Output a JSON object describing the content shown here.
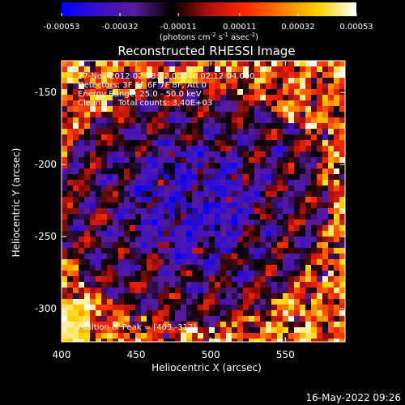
{
  "chart_data": {
    "type": "heatmap",
    "title": "Reconstructed RHESSI Image",
    "xlabel": "Heliocentric X (arcsec)",
    "ylabel": "Heliocentric Y (arcsec)",
    "xlim": [
      400,
      590
    ],
    "ylim": [
      -323,
      -128
    ],
    "x_ticks": [
      "400",
      "450",
      "500",
      "550"
    ],
    "x_tick_values": [
      400,
      450,
      500,
      550
    ],
    "y_ticks": [
      "-150",
      "-200",
      "-250",
      "-300"
    ],
    "y_tick_values": [
      -150,
      -200,
      -250,
      -300
    ],
    "colorbar": {
      "range": [
        -0.00053,
        0.00053
      ],
      "ticks": [
        "-0.00053",
        "-0.00032",
        "-0.00011",
        "0.00011",
        "0.00032",
        "0.00053"
      ],
      "tick_values": [
        -0.00053,
        -0.00032,
        -0.00011,
        0.00011,
        0.00032,
        0.00053
      ],
      "units_base": "(photons cm",
      "units_exp1": "-2",
      "units_mid1": " s",
      "units_exp2": "-1",
      "units_mid2": " asec",
      "units_exp3": "-2",
      "units_end": ")",
      "colormap": [
        "#0000ff",
        "#3a10c8",
        "#5a1a9a",
        "#000000",
        "#b01010",
        "#ff2a00",
        "#ff8000",
        "#ffd400",
        "#ffffff"
      ]
    },
    "annotations": {
      "time": "27-Nov-2012 02:08:52.000 to 02:12:04.000",
      "detectors": "Detectors: 3F 5F 6F 7F 8F, Att 0",
      "energy": "Energy Range: 25.0 - 50.0 keV",
      "clean": "Clean",
      "counts": "Total counts: 3.40E+03",
      "peak": "Position of Peak = [403,-317]"
    },
    "peak": [
      403,
      -317
    ],
    "grid": false
  },
  "footer": {
    "date": "16-May-2022 09:26"
  }
}
